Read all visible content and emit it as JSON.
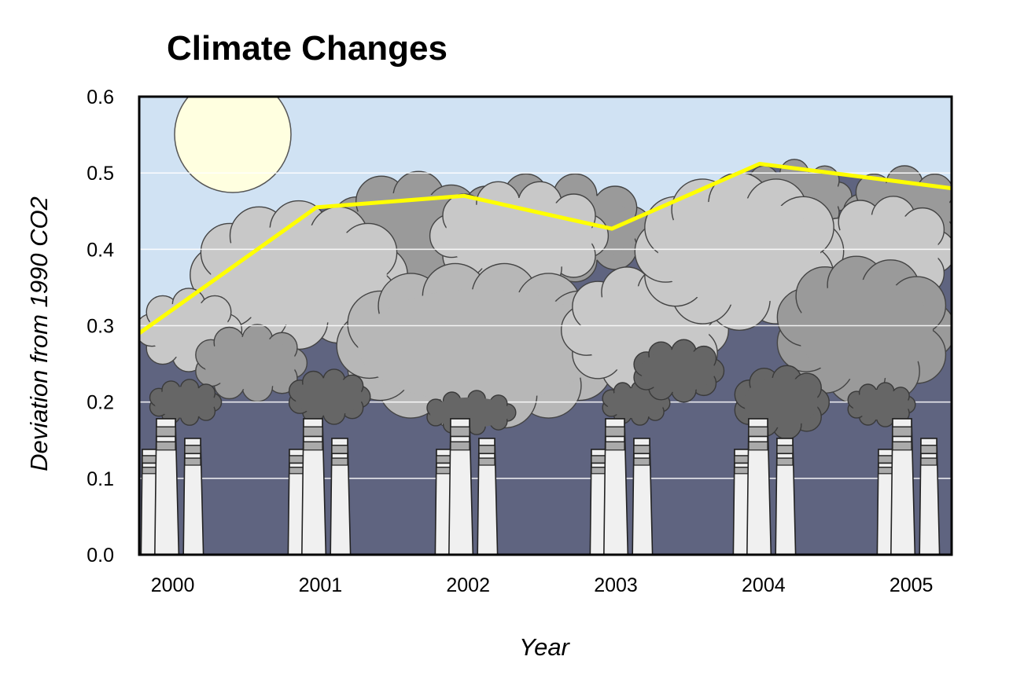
{
  "chart_data": {
    "type": "area",
    "title": "Climate Changes",
    "xlabel": "Year",
    "ylabel": "Deviation from 1990 CO2",
    "categories": [
      "2000",
      "2001",
      "2002",
      "2003",
      "2004",
      "2005"
    ],
    "x": [
      2000,
      2001,
      2002,
      2003,
      2004,
      2005
    ],
    "xlim": [
      1999.8,
      2005.3
    ],
    "ylim": [
      0,
      0.6
    ],
    "y_ticks": [
      "0.0",
      "0.1",
      "0.2",
      "0.3",
      "0.4",
      "0.5",
      "0.6"
    ],
    "grid": "horizontal",
    "series": [
      {
        "points": [
          {
            "x": 1999.8,
            "y": 0.29
          },
          {
            "x": 2001.0,
            "y": 0.455
          },
          {
            "x": 2002.0,
            "y": 0.47
          },
          {
            "x": 2003.0,
            "y": 0.427
          },
          {
            "x": 2004.0,
            "y": 0.512
          },
          {
            "x": 2005.3,
            "y": 0.48
          }
        ],
        "color": "#ffff00"
      }
    ],
    "colors": {
      "sky": "#d0e2f3",
      "pollution": "#5f6480",
      "line": "#ffff00",
      "sun": "#ffffe0",
      "gridline": "#ffffff"
    },
    "icons": [
      "sun-icon",
      "cloud-icon",
      "smoke-icon",
      "smokestack-icon"
    ]
  }
}
